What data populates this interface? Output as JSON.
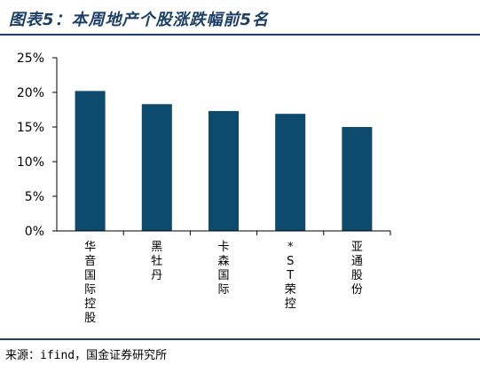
{
  "header": {
    "title": "图表5：本周地产个股涨跌幅前5名"
  },
  "footer": {
    "source": "来源：ifind，国金证券研究所"
  },
  "chart_data": {
    "type": "bar",
    "categories": [
      "华音国际控股",
      "黑牡丹",
      "卡森国际",
      "*ST荣控",
      "亚通股份"
    ],
    "values": [
      20.2,
      18.3,
      17.3,
      16.9,
      15.0
    ],
    "yticks": [
      "0%",
      "5%",
      "10%",
      "15%",
      "20%",
      "25%"
    ],
    "ylim": [
      0,
      25
    ],
    "unit": "%",
    "bar_color": "#0c4a6e",
    "grid": false,
    "legend": "none"
  }
}
